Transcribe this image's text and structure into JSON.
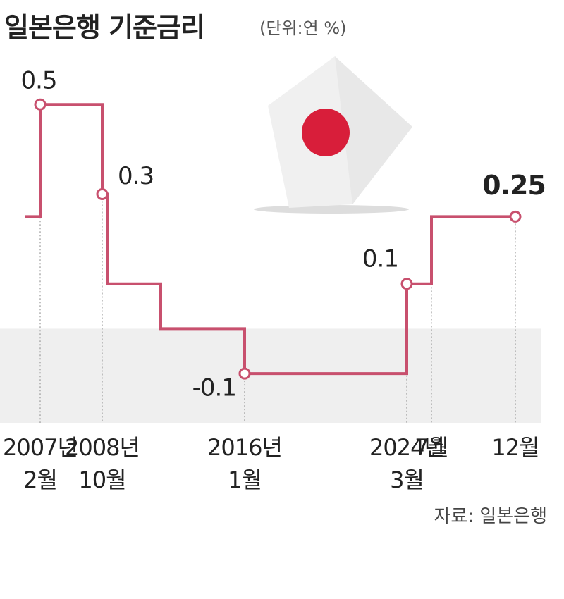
{
  "chart_data": {
    "type": "line",
    "title": "일본은행 기준금리",
    "subtitle": "(단위:연 %)",
    "source": "자료: 일본은행",
    "categories": [
      null,
      "2007년\n2월",
      "2008년\n10월",
      null,
      null,
      "2016년\n1월",
      "2024년\n3월",
      "7월",
      "12월"
    ],
    "series": [
      {
        "name": "기준금리",
        "color": "#c8506e",
        "values": [
          0.25,
          0.5,
          0.3,
          0.1,
          0,
          -0.1,
          0.1,
          0.25,
          0.25
        ]
      }
    ],
    "ylim": [
      -0.2,
      0.6
    ]
  }
}
